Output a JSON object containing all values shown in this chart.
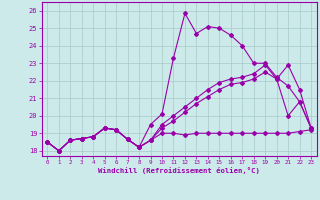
{
  "xlabel": "Windchill (Refroidissement éolien,°C)",
  "bg_color": "#cdeaea",
  "grid_color": "#a8c8c8",
  "line_color": "#9900aa",
  "xlim": [
    -0.5,
    23.5
  ],
  "ylim": [
    17.7,
    26.5
  ],
  "xticks": [
    0,
    1,
    2,
    3,
    4,
    5,
    6,
    7,
    8,
    9,
    10,
    11,
    12,
    13,
    14,
    15,
    16,
    17,
    18,
    19,
    20,
    21,
    22,
    23
  ],
  "yticks": [
    18,
    19,
    20,
    21,
    22,
    23,
    24,
    25,
    26
  ],
  "line1_x": [
    0,
    1,
    2,
    3,
    4,
    5,
    6,
    7,
    8,
    9,
    10,
    11,
    12,
    13,
    14,
    15,
    16,
    17,
    18,
    19,
    20,
    21,
    22,
    23
  ],
  "line1_y": [
    18.5,
    18.0,
    18.6,
    18.7,
    18.8,
    19.3,
    19.2,
    18.65,
    18.2,
    18.6,
    19.0,
    19.0,
    18.9,
    19.0,
    19.0,
    19.0,
    19.0,
    19.0,
    19.0,
    19.0,
    19.0,
    19.0,
    19.1,
    19.2
  ],
  "line2_x": [
    0,
    1,
    2,
    3,
    4,
    5,
    6,
    7,
    8,
    9,
    10,
    11,
    12,
    13,
    14,
    15,
    16,
    17,
    18,
    19,
    20,
    21,
    22,
    23
  ],
  "line2_y": [
    18.5,
    18.0,
    18.6,
    18.7,
    18.8,
    19.3,
    19.2,
    18.65,
    18.2,
    19.5,
    20.1,
    23.3,
    25.85,
    24.7,
    25.1,
    25.0,
    24.6,
    24.0,
    23.0,
    23.0,
    22.2,
    21.7,
    20.8,
    19.3
  ],
  "line3_x": [
    0,
    1,
    2,
    3,
    4,
    5,
    6,
    7,
    8,
    9,
    10,
    11,
    12,
    13,
    14,
    15,
    16,
    17,
    18,
    19,
    20,
    21,
    22,
    23
  ],
  "line3_y": [
    18.5,
    18.0,
    18.6,
    18.7,
    18.8,
    19.3,
    19.2,
    18.65,
    18.2,
    18.6,
    19.5,
    20.0,
    20.5,
    21.0,
    21.5,
    21.9,
    22.1,
    22.2,
    22.4,
    22.9,
    22.1,
    22.9,
    21.5,
    19.3
  ],
  "line4_x": [
    0,
    1,
    2,
    3,
    4,
    5,
    6,
    7,
    8,
    9,
    10,
    11,
    12,
    13,
    14,
    15,
    16,
    17,
    18,
    19,
    20,
    21,
    22,
    23
  ],
  "line4_y": [
    18.5,
    18.0,
    18.6,
    18.7,
    18.8,
    19.3,
    19.2,
    18.65,
    18.2,
    18.6,
    19.3,
    19.7,
    20.2,
    20.7,
    21.1,
    21.5,
    21.8,
    21.9,
    22.1,
    22.5,
    22.1,
    20.0,
    20.8,
    19.3
  ]
}
